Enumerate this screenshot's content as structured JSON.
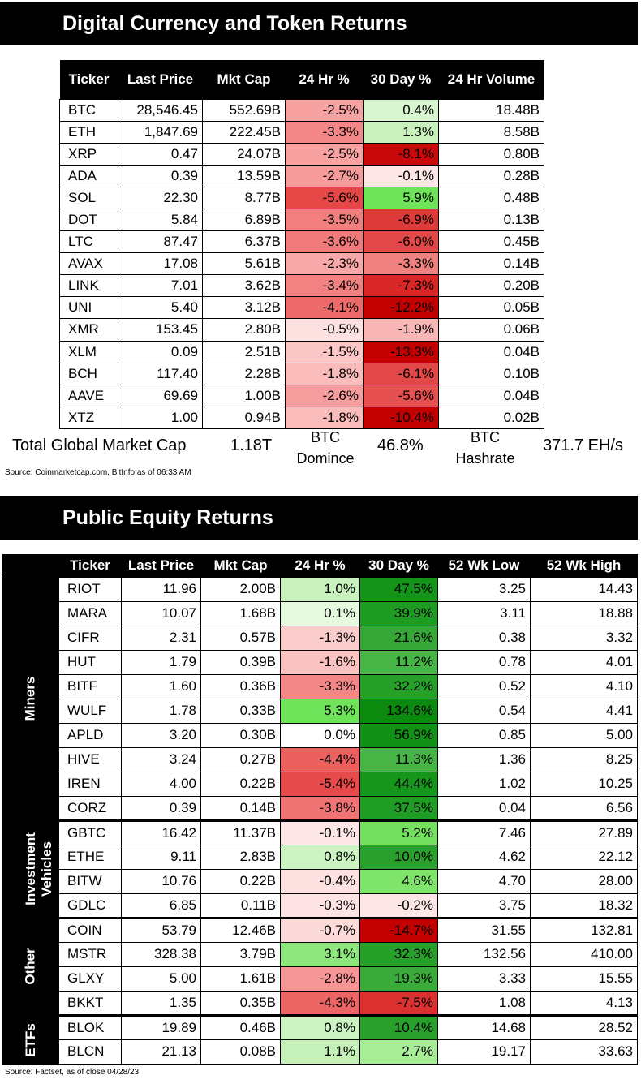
{
  "crypto": {
    "title": "Digital Currency and Token Returns",
    "headers": [
      "Ticker",
      "Last Price",
      "Mkt Cap",
      "24 Hr %",
      "30 Day %",
      "24 Hr Volume"
    ],
    "rows": [
      {
        "ticker": "BTC",
        "price": "28,546.45",
        "cap": "552.69B",
        "h24": "-2.5%",
        "d30": "0.4%",
        "vol": "18.48B",
        "c24": "#f7a1a1",
        "c30": "#d8f7d0"
      },
      {
        "ticker": "ETH",
        "price": "1,847.69",
        "cap": "222.45B",
        "h24": "-3.3%",
        "d30": "1.3%",
        "vol": "8.58B",
        "c24": "#f38686",
        "c30": "#c8f1bd"
      },
      {
        "ticker": "XRP",
        "price": "0.47",
        "cap": "24.07B",
        "h24": "-2.5%",
        "d30": "-8.1%",
        "vol": "0.80B",
        "c24": "#f7a1a1",
        "c30": "#c80a0a"
      },
      {
        "ticker": "ADA",
        "price": "0.39",
        "cap": "13.59B",
        "h24": "-2.7%",
        "d30": "-0.1%",
        "vol": "0.28B",
        "c24": "#f69a9a",
        "c30": "#fde6e6"
      },
      {
        "ticker": "SOL",
        "price": "22.30",
        "cap": "8.77B",
        "h24": "-5.6%",
        "d30": "5.9%",
        "vol": "0.48B",
        "c24": "#e64646",
        "c30": "#6fe35a"
      },
      {
        "ticker": "DOT",
        "price": "5.84",
        "cap": "6.89B",
        "h24": "-3.5%",
        "d30": "-6.9%",
        "vol": "0.13B",
        "c24": "#f27e7e",
        "c30": "#df3a3a"
      },
      {
        "ticker": "LTC",
        "price": "87.47",
        "cap": "6.37B",
        "h24": "-3.6%",
        "d30": "-6.0%",
        "vol": "0.45B",
        "c24": "#f17b7b",
        "c30": "#e24848"
      },
      {
        "ticker": "AVAX",
        "price": "17.08",
        "cap": "5.61B",
        "h24": "-2.3%",
        "d30": "-3.3%",
        "vol": "0.14B",
        "c24": "#f8a8a8",
        "c30": "#f08181"
      },
      {
        "ticker": "LINK",
        "price": "7.01",
        "cap": "3.62B",
        "h24": "-3.4%",
        "d30": "-7.3%",
        "vol": "0.20B",
        "c24": "#f28282",
        "c30": "#d92727"
      },
      {
        "ticker": "UNI",
        "price": "5.40",
        "cap": "3.12B",
        "h24": "-4.1%",
        "d30": "-12.2%",
        "vol": "0.05B",
        "c24": "#ed6a6a",
        "c30": "#c20000"
      },
      {
        "ticker": "XMR",
        "price": "153.45",
        "cap": "2.80B",
        "h24": "-0.5%",
        "d30": "-1.9%",
        "vol": "0.06B",
        "c24": "#fde0e0",
        "c30": "#f9b6b6"
      },
      {
        "ticker": "XLM",
        "price": "0.09",
        "cap": "2.51B",
        "h24": "-1.5%",
        "d30": "-13.3%",
        "vol": "0.04B",
        "c24": "#fbc6c6",
        "c30": "#c20000"
      },
      {
        "ticker": "BCH",
        "price": "117.40",
        "cap": "2.28B",
        "h24": "-1.8%",
        "d30": "-6.1%",
        "vol": "0.10B",
        "c24": "#fabbbb",
        "c30": "#e24848"
      },
      {
        "ticker": "AAVE",
        "price": "69.69",
        "cap": "1.00B",
        "h24": "-2.6%",
        "d30": "-5.6%",
        "vol": "0.04B",
        "c24": "#f69e9e",
        "c30": "#e65050"
      },
      {
        "ticker": "XTZ",
        "price": "1.00",
        "cap": "0.94B",
        "h24": "-1.8%",
        "d30": "-10.4%",
        "vol": "0.02B",
        "c24": "#fabbbb",
        "c30": "#c20000"
      }
    ],
    "summary": {
      "total_label": "Total Global Market Cap",
      "total_value": "1.18T",
      "dom_label1": "BTC",
      "dom_label2": "Domince",
      "dom_value": "46.8%",
      "hash_label1": "BTC",
      "hash_label2": "Hashrate",
      "hash_value": "371.7 EH/s"
    },
    "source": "Source: Coinmarketcap.com, BitInfo as of 06:33 AM"
  },
  "equity": {
    "title": "Public Equity Returns",
    "headers": [
      "Ticker",
      "Last Price",
      "Mkt Cap",
      "24 Hr %",
      "30 Day %",
      "52 Wk Low",
      "52 Wk High"
    ],
    "groups": [
      {
        "label_lines": [
          "Miners"
        ],
        "rows": [
          {
            "ticker": "RIOT",
            "price": "11.96",
            "cap": "2.00B",
            "h24": "1.0%",
            "d30": "47.5%",
            "low": "3.25",
            "high": "14.43",
            "c24": "#c8f1bd",
            "c30": "#15941a"
          },
          {
            "ticker": "MARA",
            "price": "10.07",
            "cap": "1.68B",
            "h24": "0.1%",
            "d30": "39.9%",
            "low": "3.11",
            "high": "18.88",
            "c24": "#e6fae0",
            "c30": "#1e9c22"
          },
          {
            "ticker": "CIFR",
            "price": "2.31",
            "cap": "0.57B",
            "h24": "-1.3%",
            "d30": "21.6%",
            "low": "0.38",
            "high": "3.32",
            "c24": "#fbcccc",
            "c30": "#34a737"
          },
          {
            "ticker": "HUT",
            "price": "1.79",
            "cap": "0.39B",
            "h24": "-1.6%",
            "d30": "11.2%",
            "low": "0.78",
            "high": "4.01",
            "c24": "#fbc2c2",
            "c30": "#46b546"
          },
          {
            "ticker": "BITF",
            "price": "1.60",
            "cap": "0.36B",
            "h24": "-3.3%",
            "d30": "32.2%",
            "low": "0.52",
            "high": "4.10",
            "c24": "#f38686",
            "c30": "#27a02a"
          },
          {
            "ticker": "WULF",
            "price": "1.78",
            "cap": "0.33B",
            "h24": "5.3%",
            "d30": "134.6%",
            "low": "0.54",
            "high": "4.41",
            "c24": "#6fe35a",
            "c30": "#0b8a0e"
          },
          {
            "ticker": "APLD",
            "price": "3.20",
            "cap": "0.30B",
            "h24": "0.0%",
            "d30": "56.9%",
            "low": "0.85",
            "high": "5.00",
            "c24": "#ffffff",
            "c30": "#119216"
          },
          {
            "ticker": "HIVE",
            "price": "3.24",
            "cap": "0.27B",
            "h24": "-4.4%",
            "d30": "11.3%",
            "low": "1.36",
            "high": "8.25",
            "c24": "#ec6060",
            "c30": "#46b546"
          },
          {
            "ticker": "IREN",
            "price": "4.00",
            "cap": "0.22B",
            "h24": "-5.4%",
            "d30": "44.4%",
            "low": "1.02",
            "high": "10.25",
            "c24": "#e74a4a",
            "c30": "#17961c"
          },
          {
            "ticker": "CORZ",
            "price": "0.39",
            "cap": "0.14B",
            "h24": "-3.8%",
            "d30": "37.5%",
            "low": "0.04",
            "high": "6.56",
            "c24": "#f07474",
            "c30": "#209d24"
          }
        ]
      },
      {
        "label_lines": [
          "Investment",
          "Vehicles"
        ],
        "rows": [
          {
            "ticker": "GBTC",
            "price": "16.42",
            "cap": "11.37B",
            "h24": "-0.1%",
            "d30": "5.2%",
            "low": "7.46",
            "high": "27.89",
            "c24": "#fde6e6",
            "c30": "#75e060"
          },
          {
            "ticker": "ETHE",
            "price": "9.11",
            "cap": "2.83B",
            "h24": "0.8%",
            "d30": "10.0%",
            "low": "4.62",
            "high": "22.12",
            "c24": "#ccf3c2",
            "c30": "#2aa02c"
          },
          {
            "ticker": "BITW",
            "price": "10.76",
            "cap": "0.22B",
            "h24": "-0.4%",
            "d30": "4.6%",
            "low": "4.70",
            "high": "28.00",
            "c24": "#fde0e0",
            "c30": "#7fe46a"
          },
          {
            "ticker": "GDLC",
            "price": "6.85",
            "cap": "0.11B",
            "h24": "-0.3%",
            "d30": "-0.2%",
            "low": "3.75",
            "high": "18.32",
            "c24": "#fde3e3",
            "c30": "#fde6e6"
          }
        ]
      },
      {
        "label_lines": [
          "Other"
        ],
        "rows": [
          {
            "ticker": "COIN",
            "price": "53.79",
            "cap": "12.46B",
            "h24": "-0.7%",
            "d30": "-14.7%",
            "low": "31.55",
            "high": "132.81",
            "c24": "#fcdada",
            "c30": "#c20000"
          },
          {
            "ticker": "MSTR",
            "price": "328.38",
            "cap": "3.79B",
            "h24": "3.1%",
            "d30": "32.3%",
            "low": "132.56",
            "high": "410.00",
            "c24": "#8ee77c",
            "c30": "#27a02a"
          },
          {
            "ticker": "GLXY",
            "price": "5.00",
            "cap": "1.61B",
            "h24": "-2.8%",
            "d30": "19.3%",
            "low": "3.33",
            "high": "15.55",
            "c24": "#f59595",
            "c30": "#3aab3b"
          },
          {
            "ticker": "BKKT",
            "price": "1.35",
            "cap": "0.35B",
            "h24": "-4.3%",
            "d30": "-7.5%",
            "low": "1.08",
            "high": "4.13",
            "c24": "#ec6464",
            "c30": "#dc3030"
          }
        ]
      },
      {
        "label_lines": [
          "ETFs"
        ],
        "rows": [
          {
            "ticker": "BLOK",
            "price": "19.89",
            "cap": "0.46B",
            "h24": "0.8%",
            "d30": "10.4%",
            "low": "14.68",
            "high": "28.52",
            "c24": "#ccf3c2",
            "c30": "#2aa02c"
          },
          {
            "ticker": "BLCN",
            "price": "21.13",
            "cap": "0.08B",
            "h24": "1.1%",
            "d30": "2.7%",
            "low": "19.17",
            "high": "33.63",
            "c24": "#c5f0b9",
            "c30": "#a7ec96"
          }
        ]
      }
    ],
    "source": "Source: Factset, as of close 04/28/23"
  }
}
